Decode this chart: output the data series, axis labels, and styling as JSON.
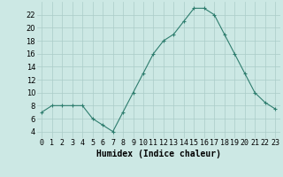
{
  "x": [
    0,
    1,
    2,
    3,
    4,
    5,
    6,
    7,
    8,
    9,
    10,
    11,
    12,
    13,
    14,
    15,
    16,
    17,
    18,
    19,
    20,
    21,
    22,
    23
  ],
  "y": [
    7,
    8,
    8,
    8,
    8,
    6,
    5,
    4,
    7,
    10,
    13,
    16,
    18,
    19,
    21,
    23,
    23,
    22,
    19,
    16,
    13,
    10,
    8.5,
    7.5
  ],
  "line_color": "#2e7d6e",
  "marker": "+",
  "marker_size": 3,
  "bg_color": "#cce8e4",
  "grid_color": "#aaccc8",
  "xlabel": "Humidex (Indice chaleur)",
  "xlabel_fontsize": 7,
  "tick_fontsize": 6,
  "ylim": [
    3,
    24
  ],
  "yticks": [
    4,
    6,
    8,
    10,
    12,
    14,
    16,
    18,
    20,
    22
  ],
  "xlim": [
    -0.5,
    23.5
  ]
}
